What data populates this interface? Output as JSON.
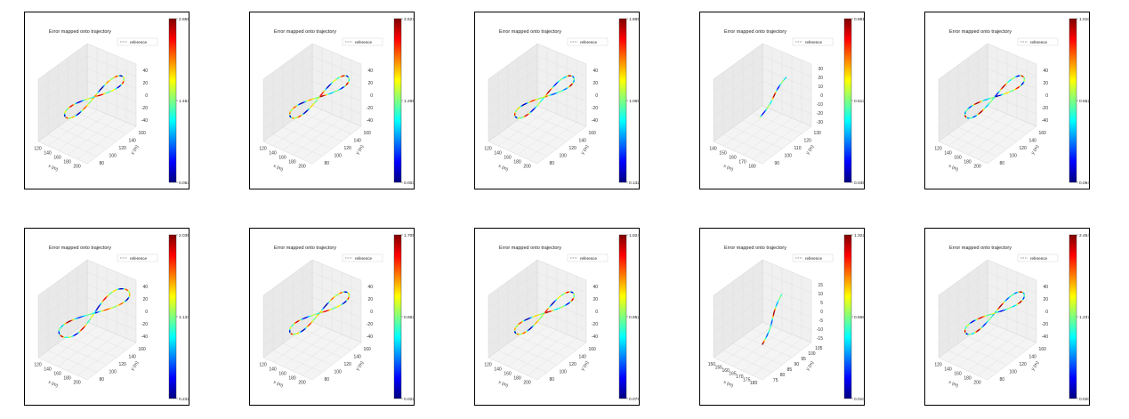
{
  "colors": {
    "cmap": [
      "#00007f",
      "#0000ff",
      "#007fff",
      "#00ffff",
      "#7fff7f",
      "#ffff00",
      "#ff7f00",
      "#ff0000",
      "#7f0000"
    ],
    "reference": "#777777",
    "pane": "#f0f0f0",
    "grid": "#dddddd"
  },
  "chart_data": [
    {
      "type": "line3d",
      "title": "Error mapped onto trajectory",
      "legend": [
        "reference"
      ],
      "legend_position": "top-right",
      "xlabel": "x (m)",
      "ylabel": "y (m)",
      "xticks": [
        "120",
        "140",
        "160",
        "180",
        "200"
      ],
      "yticks": [
        "80",
        "100",
        "120",
        "140",
        "160"
      ],
      "zticks": [
        "40",
        "20",
        "0",
        "-20",
        "-40"
      ],
      "colorbar": {
        "max": "2.856",
        "mid": "1.454",
        "min": "0.053"
      },
      "trajectory": {
        "shape": "figure8",
        "scale": 1.0,
        "tilt": 0
      }
    },
    {
      "type": "line3d",
      "title": "Error mapped onto trajectory",
      "legend": [
        "reference"
      ],
      "legend_position": "top-right",
      "xlabel": "x (m)",
      "ylabel": "y (m)",
      "xticks": [
        "120",
        "140",
        "160",
        "180",
        "200"
      ],
      "yticks": [
        "80",
        "100",
        "120",
        "140",
        "160"
      ],
      "zticks": [
        "40",
        "20",
        "0",
        "-20",
        "-40"
      ],
      "colorbar": {
        "max": "2.527",
        "mid": "1.265",
        "min": "0.003"
      },
      "trajectory": {
        "shape": "figure8",
        "scale": 1.0,
        "tilt": 0
      }
    },
    {
      "type": "line3d",
      "title": "Error mapped onto trajectory",
      "legend": [
        "reference"
      ],
      "legend_position": "top-right",
      "xlabel": "x (m)",
      "ylabel": "y (m)",
      "xticks": [
        "120",
        "140",
        "160",
        "180",
        "200"
      ],
      "yticks": [
        "80",
        "100",
        "120",
        "140",
        "160"
      ],
      "zticks": [
        "40",
        "20",
        "0",
        "-20",
        "-40"
      ],
      "colorbar": {
        "max": "1.885",
        "mid": "1.069",
        "min": "0.132"
      },
      "trajectory": {
        "shape": "figure8",
        "scale": 1.0,
        "tilt": 0
      }
    },
    {
      "type": "line3d",
      "title": "Error mapped onto trajectory",
      "legend": [
        "reference"
      ],
      "legend_position": "top-right",
      "xlabel": "x (m)",
      "ylabel": "y (m)",
      "xticks": [
        "140",
        "150",
        "160",
        "170",
        "180"
      ],
      "yticks": [
        "90",
        "100",
        "110",
        "120",
        "130"
      ],
      "zticks": [
        "30",
        "20",
        "10",
        "0",
        "-10",
        "-20",
        "-30"
      ],
      "colorbar": {
        "max": "0.991",
        "mid": "0.513",
        "min": "0.035"
      },
      "trajectory": {
        "shape": "line",
        "scale": 1.0,
        "tilt": 0
      }
    },
    {
      "type": "line3d",
      "title": "Error mapped onto trajectory",
      "legend": [
        "reference"
      ],
      "legend_position": "top-right",
      "xlabel": "x (m)",
      "ylabel": "y (m)",
      "xticks": [
        "120",
        "140",
        "160",
        "180",
        "200"
      ],
      "yticks": [
        "80",
        "100",
        "120",
        "140",
        "160"
      ],
      "zticks": [
        "40",
        "20",
        "0",
        "-20",
        "-40"
      ],
      "colorbar": {
        "max": "1.010",
        "mid": "0.552",
        "min": "0.094"
      },
      "trajectory": {
        "shape": "figure8",
        "scale": 1.0,
        "tilt": 0
      }
    },
    {
      "type": "line3d",
      "title": "Error mapped onto trajectory",
      "legend": [
        "reference"
      ],
      "legend_position": "top-right",
      "xlabel": "x (m)",
      "ylabel": "y (m)",
      "xticks": [
        "120",
        "140",
        "160",
        "180",
        "200"
      ],
      "yticks": [
        "80",
        "100",
        "120",
        "140",
        "160"
      ],
      "zticks": [
        "40",
        "20",
        "0",
        "-20",
        "-40"
      ],
      "colorbar": {
        "max": "2.036",
        "mid": "1.134",
        "min": "0.232"
      },
      "trajectory": {
        "shape": "figure8",
        "scale": 1.15,
        "tilt": 1
      }
    },
    {
      "type": "line3d",
      "title": "Error mapped onto trajectory",
      "legend": [
        "reference"
      ],
      "legend_position": "top-right",
      "xlabel": "x (m)",
      "ylabel": "y (m)",
      "xticks": [
        "120",
        "140",
        "160",
        "180",
        "200"
      ],
      "yticks": [
        "80",
        "100",
        "120",
        "140",
        "160"
      ],
      "zticks": [
        "40",
        "20",
        "0",
        "-20",
        "-40"
      ],
      "colorbar": {
        "max": "1.705",
        "mid": "0.863",
        "min": "0.022"
      },
      "trajectory": {
        "shape": "figure8",
        "scale": 1.0,
        "tilt": 0
      }
    },
    {
      "type": "line3d",
      "title": "Error mapped onto trajectory",
      "legend": [
        "reference"
      ],
      "legend_position": "top-right",
      "xlabel": "x (m)",
      "ylabel": "y (m)",
      "xticks": [
        "120",
        "140",
        "160",
        "180",
        "200"
      ],
      "yticks": [
        "80",
        "100",
        "120",
        "140",
        "160"
      ],
      "zticks": [
        "40",
        "20",
        "0",
        "-20",
        "-40"
      ],
      "colorbar": {
        "max": "1.824",
        "mid": "0.952",
        "min": "0.079"
      },
      "trajectory": {
        "shape": "figure8",
        "scale": 1.0,
        "tilt": 0
      }
    },
    {
      "type": "line3d",
      "title": "Error mapped onto trajectory",
      "legend": [
        "reference"
      ],
      "legend_position": "top-right",
      "xlabel": "x (m)",
      "ylabel": "y (m)",
      "xticks": [
        "150",
        "155",
        "160",
        "165",
        "170",
        "175",
        "180"
      ],
      "yticks": [
        "75",
        "80",
        "85",
        "90",
        "95",
        "100",
        "105"
      ],
      "zticks": [
        "15",
        "10",
        "5",
        "0",
        "-5",
        "-10",
        "-15"
      ],
      "colorbar": {
        "max": "1.322",
        "mid": "0.666",
        "min": "0.010"
      },
      "trajectory": {
        "shape": "line",
        "scale": 1.0,
        "tilt": 1
      }
    },
    {
      "type": "line3d",
      "title": "Error mapped onto trajectory",
      "legend": [
        "reference"
      ],
      "legend_position": "top-right",
      "xlabel": "x (m)",
      "ylabel": "y (m)",
      "xticks": [
        "120",
        "140",
        "160",
        "180",
        "200"
      ],
      "yticks": [
        "80",
        "100",
        "120",
        "140",
        "160"
      ],
      "zticks": [
        "40",
        "20",
        "0",
        "-20",
        "-40"
      ],
      "colorbar": {
        "max": "2.454",
        "mid": "1.237",
        "min": "0.020"
      },
      "trajectory": {
        "shape": "figure8",
        "scale": 1.0,
        "tilt": 0
      }
    }
  ]
}
